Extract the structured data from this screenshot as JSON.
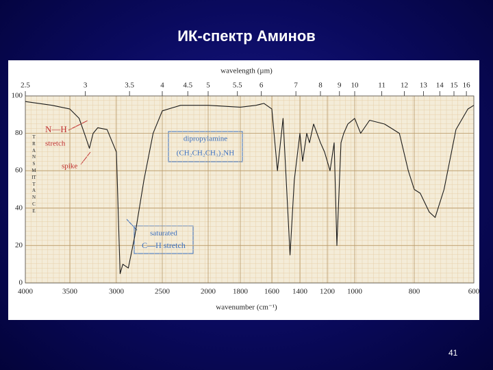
{
  "slide_title": "ИК-спектр Аминов",
  "page_number": "41",
  "chart_data": {
    "type": "line",
    "x_label": "wavenumber (cm⁻¹)",
    "top_axis_label": "wavelength (µm)",
    "y_label": "TRANSMITTANCE",
    "xlim": [
      4000,
      600
    ],
    "xticks": [
      4000,
      3500,
      3000,
      2500,
      2000,
      1800,
      1600,
      1400,
      1200,
      1000,
      800,
      600
    ],
    "x2ticks": [
      2.5,
      3,
      3.5,
      4,
      4.5,
      5,
      5.5,
      6,
      7,
      8,
      9,
      10,
      11,
      12,
      13,
      14,
      15,
      16
    ],
    "ylim": [
      0,
      100
    ],
    "yticks": [
      0,
      20,
      40,
      60,
      80,
      100
    ],
    "grid": true,
    "color": "#1a1a1a",
    "x": [
      4000,
      3850,
      3700,
      3500,
      3400,
      3330,
      3290,
      3250,
      3200,
      3100,
      3000,
      2960,
      2930,
      2870,
      2800,
      2700,
      2600,
      2500,
      2300,
      2000,
      1800,
      1700,
      1650,
      1600,
      1560,
      1520,
      1470,
      1440,
      1400,
      1380,
      1350,
      1330,
      1300,
      1250,
      1220,
      1180,
      1150,
      1130,
      1100,
      1080,
      1050,
      1000,
      980,
      950,
      900,
      880,
      850,
      820,
      800,
      780,
      750,
      730,
      700,
      660,
      620,
      600
    ],
    "values": [
      97,
      96,
      95,
      93,
      88,
      78,
      72,
      80,
      83,
      82,
      70,
      5,
      10,
      8,
      25,
      55,
      80,
      92,
      95,
      95,
      94,
      95,
      96,
      93,
      60,
      88,
      15,
      55,
      80,
      65,
      80,
      75,
      85,
      75,
      70,
      60,
      75,
      20,
      75,
      80,
      85,
      88,
      80,
      87,
      85,
      83,
      80,
      60,
      50,
      48,
      38,
      35,
      50,
      82,
      93,
      95
    ],
    "annotations": [
      "N—H",
      "stretch",
      "spike",
      "dipropylamine",
      "(CH₂CH₂CH₃)₂NH",
      "saturated",
      "C—H stretch"
    ]
  }
}
